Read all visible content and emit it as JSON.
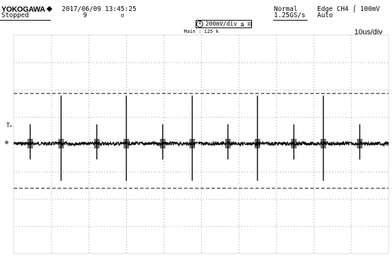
{
  "header": {
    "brand": "YOKOGAWA",
    "status": "Stopped",
    "datetime": "2017/06/09 13:45:25",
    "acq_count": "9",
    "acq_mode": "Normal",
    "sample_rate": "1.25GS/s",
    "trigger_source": "Edge CH4",
    "trigger_level": "100mV",
    "trigger_mode": "Auto"
  },
  "channel": {
    "number": "4",
    "scale": "200mV/div",
    "coupling_suffix": "≦ ⊡"
  },
  "main": {
    "record_label": "Main : 125 k",
    "timebase": "10us/div"
  },
  "markers": {
    "trigger_marker": "T",
    "ground_marker": "⊕"
  },
  "icons": [
    "diamond-logo-icon",
    "trigger-rising-edge-icon",
    "channel-circle-icon",
    "trigger-position-icon"
  ],
  "colors": {
    "trace": "#000000",
    "grid_dots": "#999999",
    "cursor": "#000000"
  }
}
